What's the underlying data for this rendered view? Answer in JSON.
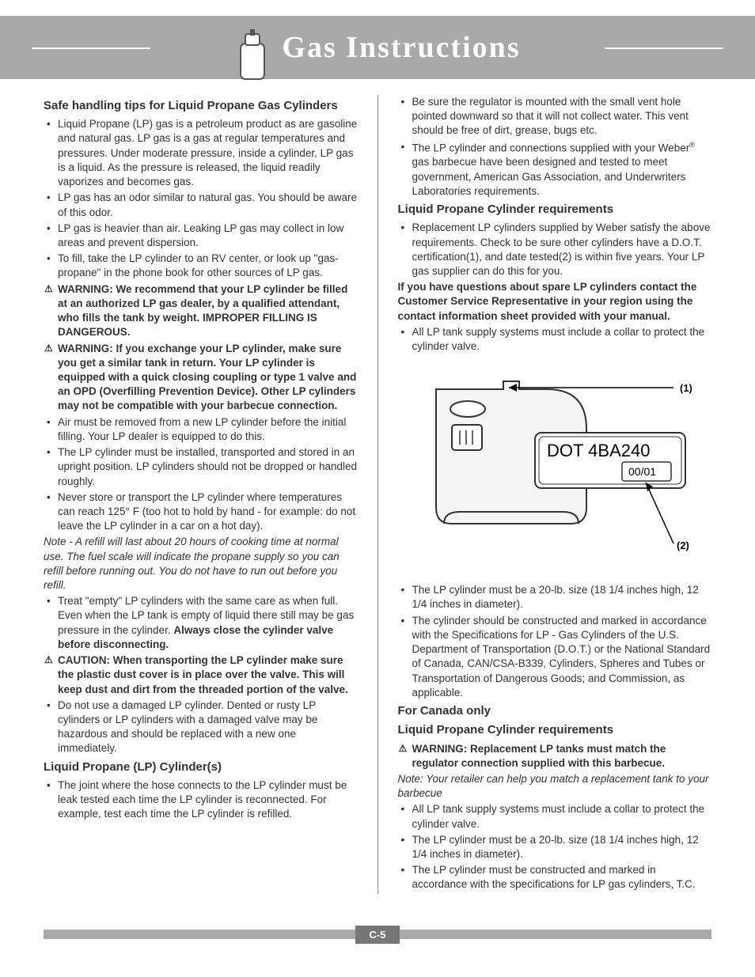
{
  "header": {
    "title": "Gas Instructions"
  },
  "left": {
    "h1": "Safe handling tips for Liquid Propane Gas Cylinders",
    "items": [
      {
        "text": "Liquid Propane (LP) gas is a petroleum product as are gasoline and natural gas. LP gas is a gas at regular temperatures and pressures. Under moderate pressure, inside a cylinder, LP gas is a liquid. As the pressure is released, the liquid readily vaporizes and becomes gas."
      },
      {
        "text": "LP gas has an odor similar to natural gas. You should be aware of this odor."
      },
      {
        "text": "LP gas is heavier than air. Leaking LP gas may collect in low areas and prevent dispersion."
      },
      {
        "text": "To fill, take the LP cylinder to an RV center, or look up \"gas-propane\" in the phone book for other sources of LP gas."
      },
      {
        "warn": true,
        "bold": true,
        "text": "WARNING: We recommend that your LP cylinder be filled at an authorized LP gas dealer, by a qualified attendant, who fills the tank by weight. IMPROPER FILLING IS DANGEROUS."
      },
      {
        "warn": true,
        "bold": true,
        "text": "WARNING: If you exchange your LP cylinder, make sure you get a similar tank in return. Your LP cylinder is equipped with a quick closing coupling or type 1 valve and an OPD (Overfilling Prevention Device). Other LP cylinders may not be compatible with your barbecue connection."
      },
      {
        "text": "Air must be removed from a new LP cylinder before the initial filling. Your LP dealer is equipped to do this."
      },
      {
        "text": "The LP cylinder must be installed, transported and stored in an upright position. LP cylinders should not be dropped or handled roughly."
      },
      {
        "text": "Never store or transport the LP cylinder where temperatures can reach 125° F (too hot to hold by hand - for example: do not leave the LP cylinder in a car on a hot day)."
      }
    ],
    "note1": "Note - A refill will last about 20 hours of cooking time at normal use. The fuel scale will indicate the propane supply so you can refill before running out. You do not have to run out before you refill.",
    "items2": [
      {
        "text": "Treat \"empty\" LP cylinders with the same care as when full. Even when the LP tank is empty of liquid there still may be gas pressure in the cylinder. ",
        "boldTail": "Always close the cylinder valve before disconnecting."
      },
      {
        "warn": true,
        "bold": true,
        "text": "CAUTION: When transporting the LP cylinder make sure the plastic dust cover is in place over the valve. This will keep dust and dirt from the threaded portion of the valve."
      },
      {
        "text": "Do not use a damaged LP cylinder. Dented or rusty LP cylinders or LP cylinders with a damaged valve may be hazardous and should be replaced with a new one immediately."
      }
    ],
    "h2": "Liquid Propane (LP) Cylinder(s)",
    "items3": [
      {
        "text": "The joint where the hose connects to the LP cylinder must be leak tested each time the LP cylinder is reconnected. For example, test each time the LP cylinder is refilled."
      }
    ]
  },
  "right": {
    "items0": [
      {
        "text": "Be sure the regulator is mounted with the small vent hole pointed downward so that it will not collect water. This vent should be free of dirt, grease, bugs etc."
      },
      {
        "pre": "The LP cylinder and connections supplied with your Weber",
        "sup": "®",
        "post": " gas barbecue have been designed and tested to meet government, American Gas Association, and Underwriters Laboratories requirements."
      }
    ],
    "h1": "Liquid Propane Cylinder requirements",
    "items1": [
      {
        "text": "Replacement LP cylinders supplied by Weber satisfy the above requirements. Check to be sure other cylinders have a D.O.T. certification(1), and date tested(2) is within five years. Your LP gas supplier can do this for you."
      }
    ],
    "bold1": "If you have questions about spare LP cylinders contact the Customer Service Representative in your region using the contact information sheet provided with your manual.",
    "items2": [
      {
        "text": "All LP tank supply systems must include a collar to protect the cylinder valve."
      }
    ],
    "diagram": {
      "label_dot": "DOT 4BA240",
      "label_date": "00/01",
      "callout1": "(1)",
      "callout2": "(2)"
    },
    "items3": [
      {
        "text": "The LP cylinder must be a 20-lb. size (18 1/4 inches high, 12 1/4 inches in diameter)."
      },
      {
        "text": "The cylinder should be constructed and marked in accordance with the Specifications for LP - Gas Cylinders of the U.S. Department of Transportation (D.O.T.) or the National Standard of Canada, CAN/CSA-B339, Cylinders, Spheres and Tubes or Transportation of Dangerous Goods; and Commission, as applicable."
      }
    ],
    "h2": "For Canada only",
    "h3": "Liquid Propane Cylinder requirements",
    "warn4": "WARNING: Replacement LP tanks must match the regulator connection supplied with this barbecue.",
    "note2": "Note: Your retailer can help you match a replacement tank to your barbecue",
    "items4": [
      {
        "text": "All LP tank supply systems must include a collar to protect the cylinder valve."
      },
      {
        "text": "The LP cylinder must be a 20-lb. size (18 1/4 inches high, 12 1/4 inches in diameter)."
      },
      {
        "text": "The LP cylinder must be constructed and marked in accordance with the specifications for LP gas cylinders, T.C."
      }
    ]
  },
  "footer": {
    "page": "C-5"
  },
  "colors": {
    "header_bg": "#a9a9a9",
    "footer_page_bg": "#777777",
    "text": "#333333"
  }
}
